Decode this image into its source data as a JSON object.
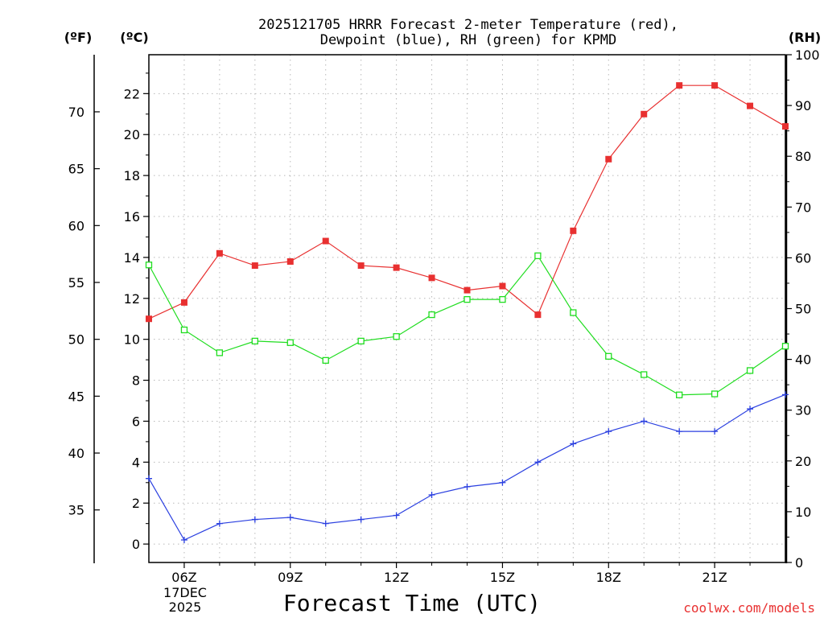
{
  "chart_data": {
    "type": "line",
    "title_line1": "2025121705 HRRR Forecast 2-meter Temperature (red),",
    "title_line2": "Dewpoint (blue), RH (green) for KPMD",
    "xlabel": "Forecast Time (UTC)",
    "unit_f": "(ºF)",
    "unit_c": "(ºC)",
    "unit_rh": "(RH)",
    "date_line1": "17DEC",
    "date_line2": "2025",
    "credit": "coolwx.com/models",
    "x_hours": [
      5,
      6,
      7,
      8,
      9,
      10,
      11,
      12,
      13,
      14,
      15,
      16,
      17,
      18,
      19,
      20,
      21,
      22,
      23
    ],
    "x_range": [
      5,
      23
    ],
    "x_ticks": [
      {
        "hour": 6,
        "label": "06Z"
      },
      {
        "hour": 9,
        "label": "09Z"
      },
      {
        "hour": 12,
        "label": "12Z"
      },
      {
        "hour": 15,
        "label": "15Z"
      },
      {
        "hour": 18,
        "label": "18Z"
      },
      {
        "hour": 21,
        "label": "21Z"
      }
    ],
    "ylim_c": [
      -0.9,
      23.9
    ],
    "y_ticks_c": [
      0,
      2,
      4,
      6,
      8,
      10,
      12,
      14,
      16,
      18,
      20,
      22
    ],
    "y_ticks_f": [
      35,
      40,
      45,
      50,
      55,
      60,
      65,
      70
    ],
    "ylim_rh": [
      0,
      100
    ],
    "y_ticks_rh": [
      0,
      10,
      20,
      30,
      40,
      50,
      60,
      70,
      80,
      90,
      100
    ],
    "series": [
      {
        "name": "Temperature",
        "color": "#e83030",
        "marker": "filled-square",
        "axis": "celsius",
        "values": [
          11.0,
          11.8,
          14.2,
          13.6,
          13.8,
          14.8,
          13.6,
          13.5,
          13.0,
          12.4,
          12.6,
          11.2,
          15.3,
          18.8,
          21.0,
          22.4,
          22.4,
          21.4,
          20.4
        ]
      },
      {
        "name": "Dewpoint",
        "color": "#2a3fe0",
        "marker": "plus",
        "axis": "celsius",
        "values": [
          3.2,
          0.2,
          1.0,
          1.2,
          1.3,
          1.0,
          1.2,
          1.4,
          2.4,
          2.8,
          3.0,
          4.0,
          4.9,
          5.5,
          6.0,
          5.5,
          5.5,
          6.6,
          7.3
        ]
      },
      {
        "name": "RH",
        "color": "#20dd20",
        "marker": "open-square",
        "axis": "rh",
        "values": [
          58.6,
          45.8,
          41.3,
          43.6,
          43.3,
          39.8,
          43.6,
          44.5,
          48.8,
          51.8,
          51.8,
          60.4,
          49.2,
          40.6,
          37.0,
          33.0,
          33.2,
          37.8,
          42.6
        ]
      }
    ]
  }
}
